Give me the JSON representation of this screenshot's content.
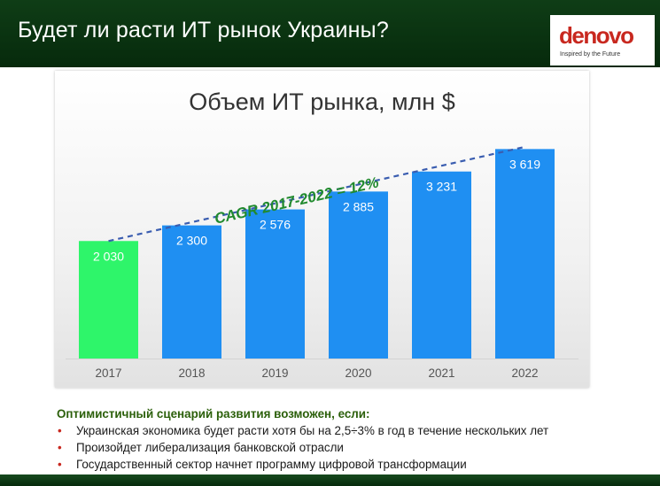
{
  "header": {
    "title": "Будет ли расти ИТ рынок Украины?"
  },
  "logo": {
    "text": "denovo",
    "tagline": "Inspired by the Future",
    "color": "#c8281f"
  },
  "chart_data": {
    "type": "bar",
    "title": "Объем ИТ рынка, млн $",
    "categories": [
      "2017",
      "2018",
      "2019",
      "2020",
      "2021",
      "2022"
    ],
    "values": [
      2030,
      2300,
      2576,
      2885,
      3231,
      3619
    ],
    "value_labels": [
      "2 030",
      "2 300",
      "2 576",
      "2 885",
      "3 231",
      "3 619"
    ],
    "colors": [
      "#2ef56a",
      "#1f8ff2",
      "#1f8ff2",
      "#1f8ff2",
      "#1f8ff2",
      "#1f8ff2"
    ],
    "trend_line": {
      "style": "dashed",
      "color": "#3a5db0"
    },
    "annotation": {
      "text": "CAGR 2017-2022 = 12%",
      "color": "#218a2e"
    },
    "xlabel": "",
    "ylabel": "",
    "ylim": [
      0,
      3900
    ],
    "grid": false,
    "legend": "none"
  },
  "notes": {
    "heading": "Оптимистичный сценарий развития возможен, если:",
    "bullet_symbol": "•",
    "items": [
      "Украинская экономика будет расти хотя бы на 2,5÷3% в год в течение нескольких лет",
      "Произойдет либерализация банковской отрасли",
      "Государственный сектор начнет программу цифровой трансформации"
    ]
  }
}
